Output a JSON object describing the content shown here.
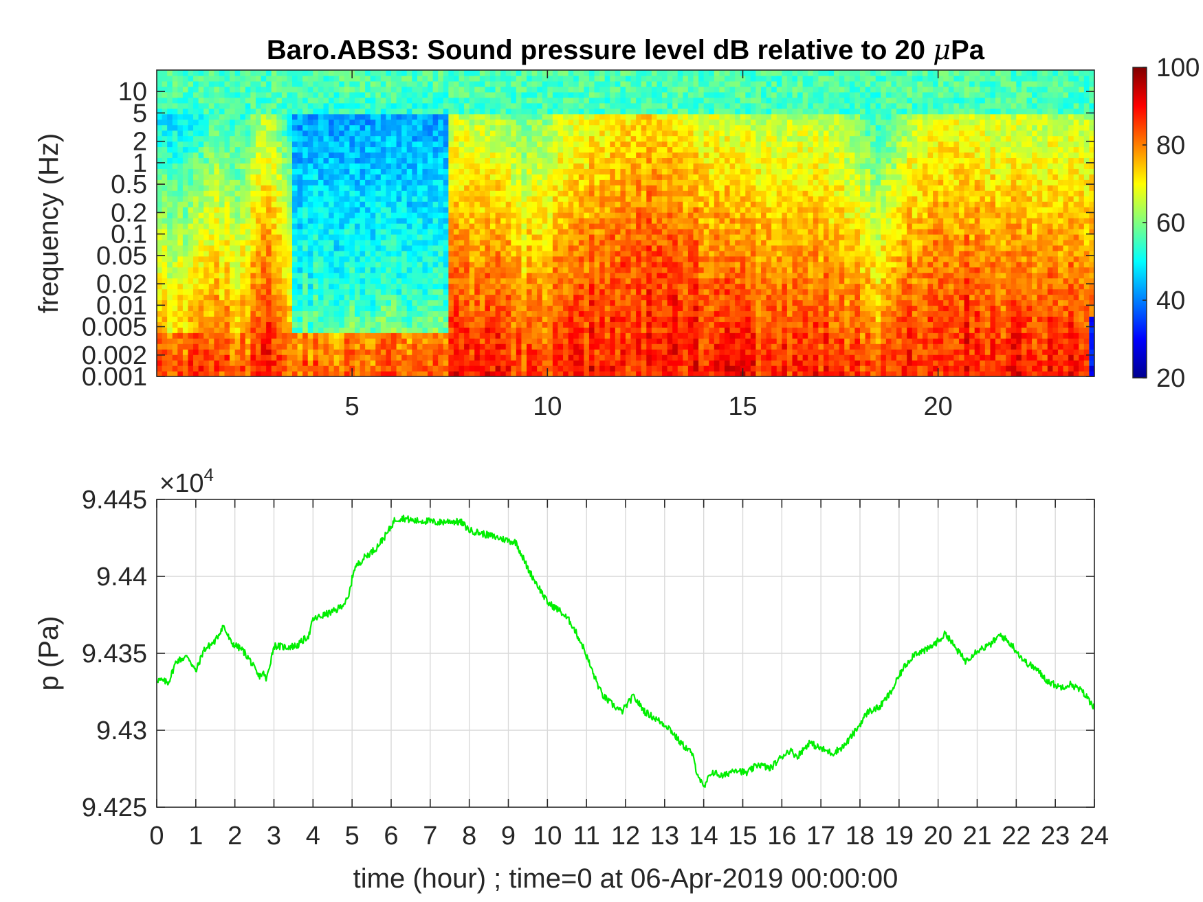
{
  "chart_data": [
    {
      "type": "heatmap",
      "title_main": "Baro.ABS3: Sound pressure level dB relative to 20 ",
      "title_mu": "μ",
      "title_tail": "Pa",
      "ylabel": "frequency (Hz)",
      "xlim": [
        0,
        24
      ],
      "x_ticks": [
        5,
        10,
        15,
        20
      ],
      "x_tick_labels": [
        "5",
        "10",
        "15",
        "20"
      ],
      "y_scale": "log",
      "ylim": [
        0.001,
        20
      ],
      "y_ticks": [
        0.001,
        0.002,
        0.005,
        0.01,
        0.02,
        0.05,
        0.1,
        0.2,
        0.5,
        1,
        2,
        5,
        10
      ],
      "y_tick_labels": [
        "0.001",
        "0.002",
        "0.005",
        "0.01",
        "0.02",
        "0.05",
        "0.1",
        "0.2",
        "0.5",
        "1",
        "2",
        "5",
        "10"
      ],
      "colormap": "jet",
      "clim": [
        20,
        100
      ],
      "colorbar_ticks": [
        20,
        40,
        60,
        80,
        100
      ],
      "colorbar_tick_labels": [
        "20",
        "40",
        "60",
        "80",
        "100"
      ],
      "regions": [
        {
          "x": [
            0,
            3.5
          ],
          "description": "moderate levels, ~70-90 dB at low freq, 45-60 dB at high freq"
        },
        {
          "x": [
            3.5,
            7.5
          ],
          "description": "quiet, ~40-55 dB above 0.01 Hz"
        },
        {
          "x": [
            7.5,
            24
          ],
          "description": "loud, ~75-95 dB below 1 Hz, peaks near hours 12-14 and 20"
        }
      ]
    },
    {
      "type": "line",
      "ylabel": "p (Pa)",
      "xlabel": "time (hour) ; time=0 at 06-Apr-2019 00:00:00",
      "exponent_label": "×10",
      "exponent_power": "4",
      "xlim": [
        0,
        24
      ],
      "ylim": [
        9.425,
        9.445
      ],
      "x_ticks": [
        0,
        1,
        2,
        3,
        4,
        5,
        6,
        7,
        8,
        9,
        10,
        11,
        12,
        13,
        14,
        15,
        16,
        17,
        18,
        19,
        20,
        21,
        22,
        23,
        24
      ],
      "x_tick_labels": [
        "0",
        "1",
        "2",
        "3",
        "4",
        "5",
        "6",
        "7",
        "8",
        "9",
        "10",
        "11",
        "12",
        "13",
        "14",
        "15",
        "16",
        "17",
        "18",
        "19",
        "20",
        "21",
        "22",
        "23",
        "24"
      ],
      "y_ticks": [
        9.425,
        9.43,
        9.435,
        9.44,
        9.445
      ],
      "y_tick_labels": [
        "9.425",
        "9.43",
        "9.435",
        "9.44",
        "9.445"
      ],
      "grid": true,
      "series": [
        {
          "color": "#00ee00",
          "x": [
            0,
            0.3,
            0.5,
            0.8,
            1.0,
            1.2,
            1.5,
            1.7,
            1.9,
            2.2,
            2.4,
            2.6,
            2.75,
            2.8,
            3.0,
            3.3,
            3.6,
            3.9,
            4.0,
            4.3,
            4.6,
            4.9,
            5.05,
            5.3,
            5.6,
            5.9,
            6.1,
            6.3,
            6.6,
            6.9,
            7.2,
            7.5,
            7.8,
            8.0,
            8.3,
            8.6,
            8.9,
            9.2,
            9.5,
            9.8,
            10.0,
            10.3,
            10.6,
            10.9,
            11.2,
            11.4,
            11.6,
            11.9,
            12.2,
            12.5,
            12.8,
            13.1,
            13.4,
            13.7,
            13.8,
            14.0,
            14.2,
            14.5,
            14.8,
            15.1,
            15.4,
            15.7,
            16.0,
            16.2,
            16.4,
            16.7,
            17.0,
            17.3,
            17.6,
            17.9,
            18.2,
            18.5,
            18.8,
            19.1,
            19.4,
            19.7,
            20.0,
            20.2,
            20.4,
            20.7,
            21.0,
            21.3,
            21.6,
            21.9,
            22.2,
            22.5,
            22.8,
            23.1,
            23.4,
            23.7,
            24.0
          ],
          "y": [
            9.4333,
            9.4331,
            9.4345,
            9.4348,
            9.4338,
            9.4352,
            9.4358,
            9.4368,
            9.4357,
            9.4352,
            9.4345,
            9.4335,
            9.4337,
            9.4332,
            9.4355,
            9.4354,
            9.4355,
            9.4362,
            9.4372,
            9.4375,
            9.4378,
            9.4385,
            9.4405,
            9.4412,
            9.4418,
            9.4428,
            9.4437,
            9.4438,
            9.4436,
            9.4436,
            9.4435,
            9.4436,
            9.4435,
            9.443,
            9.4428,
            9.4426,
            9.4424,
            9.4422,
            9.4405,
            9.4392,
            9.4383,
            9.4378,
            9.437,
            9.4355,
            9.4335,
            9.4323,
            9.4318,
            9.4312,
            9.4322,
            9.4312,
            9.4307,
            9.4302,
            9.4292,
            9.4285,
            9.4275,
            9.4262,
            9.4273,
            9.427,
            9.4275,
            9.4272,
            9.4278,
            9.4275,
            9.4283,
            9.4287,
            9.4283,
            9.4292,
            9.4288,
            9.4285,
            9.429,
            9.43,
            9.4312,
            9.4315,
            9.4325,
            9.434,
            9.435,
            9.4352,
            9.4358,
            9.4363,
            9.4355,
            9.4345,
            9.4352,
            9.4355,
            9.4362,
            9.4355,
            9.4345,
            9.434,
            9.4332,
            9.4328,
            9.433,
            9.4325,
            9.4315
          ]
        }
      ]
    }
  ]
}
